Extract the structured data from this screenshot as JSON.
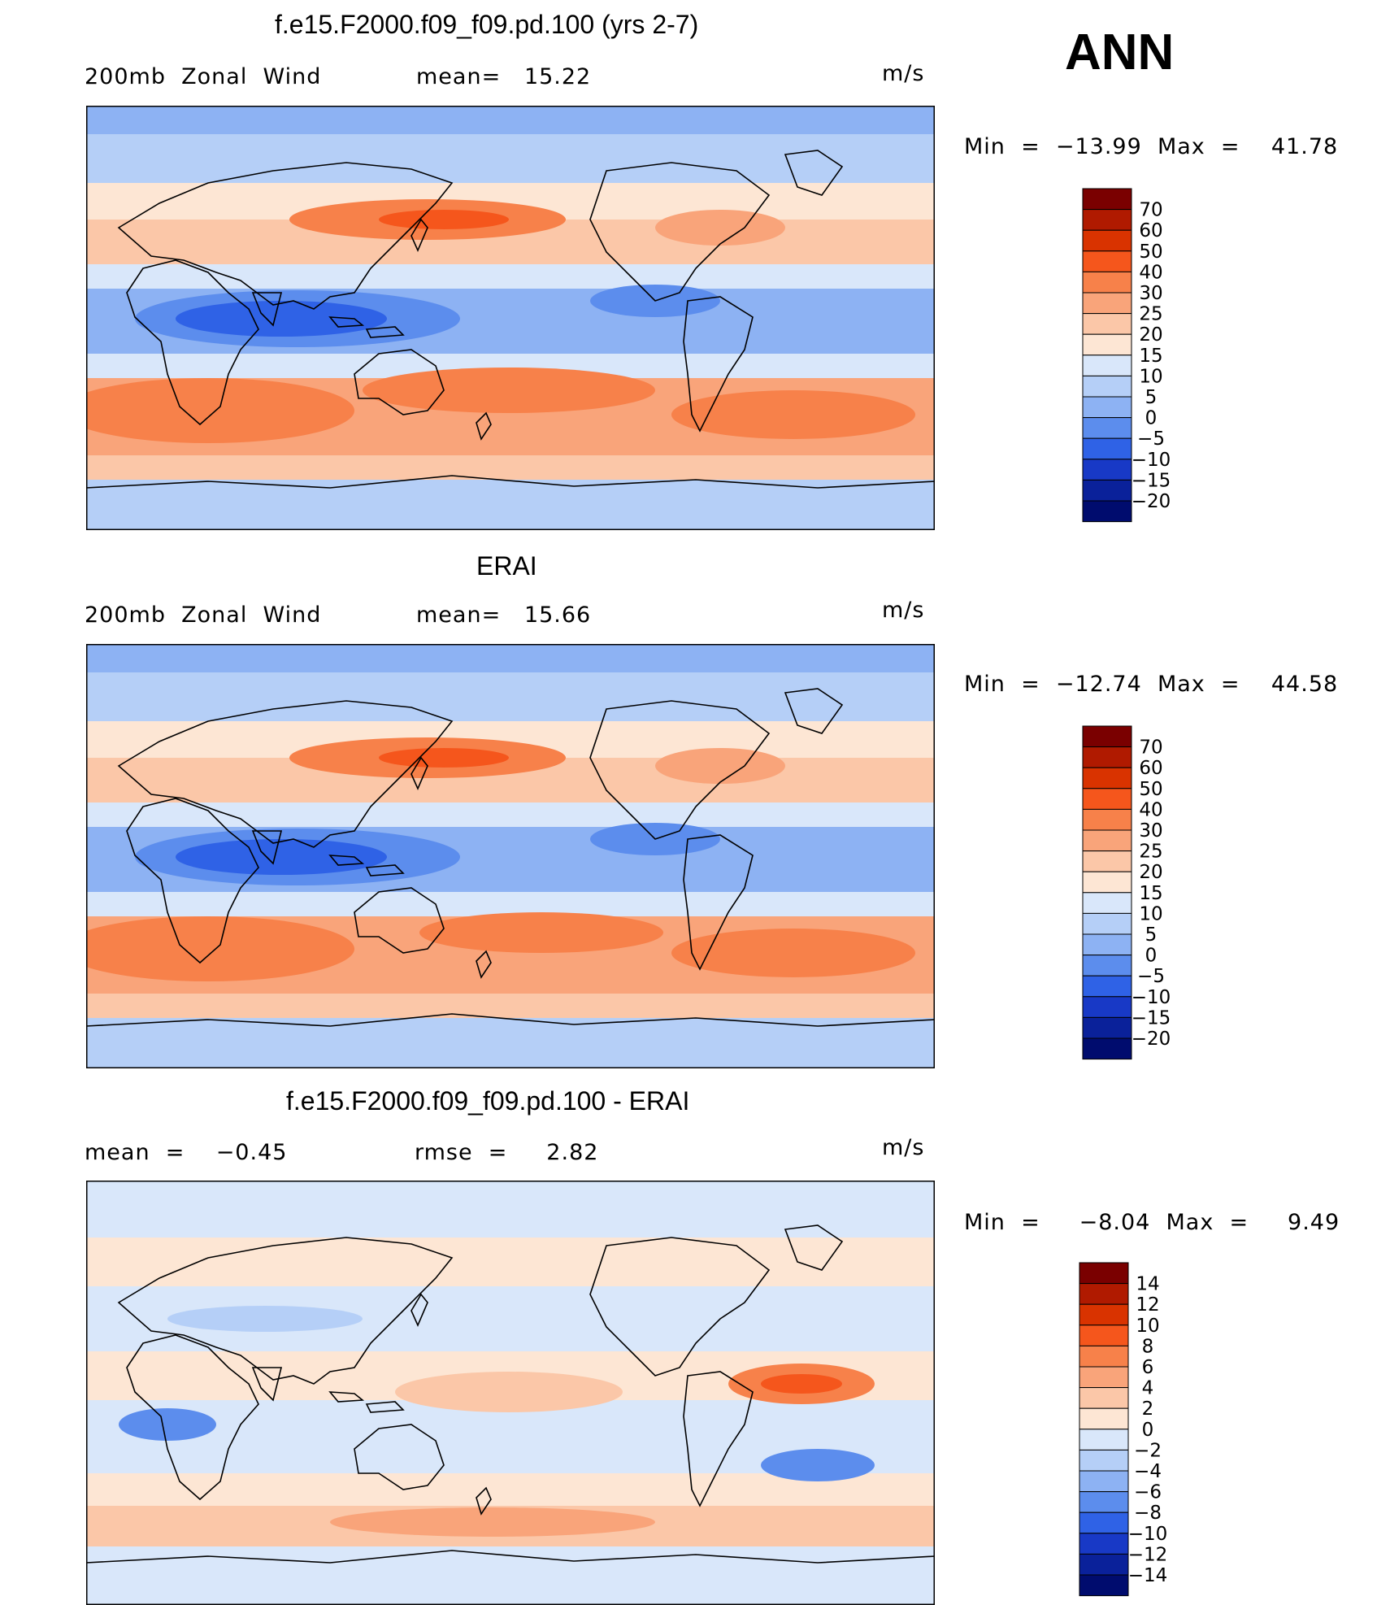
{
  "season": "ANN",
  "panels": [
    {
      "title": "f.e15.F2000.f09_f09.pd.100 (yrs 2-7)",
      "left_label": "200mb  Zonal  Wind",
      "stat1": "mean=   15.22",
      "stat2": "",
      "units": "m/s",
      "minmax": "Min  =  −13.99  Max  =    41.78",
      "type": "field"
    },
    {
      "title": "ERAI",
      "left_label": "200mb  Zonal  Wind",
      "stat1": "mean=   15.66",
      "stat2": "",
      "units": "m/s",
      "minmax": "Min  =  −12.74  Max  =    44.58",
      "type": "field"
    },
    {
      "title": "f.e15.F2000.f09_f09.pd.100 - ERAI",
      "left_label": "mean  =    −0.45",
      "stat1": "rmse  =     2.82",
      "stat2": "",
      "units": "m/s",
      "minmax": "Min  =     −8.04  Max  =     9.49",
      "type": "diff"
    }
  ],
  "colorbars": {
    "field": {
      "labels": [
        "70",
        "60",
        "50",
        "40",
        "30",
        "25",
        "20",
        "15",
        "10",
        "5",
        "0",
        "−5",
        "−10",
        "−15",
        "−20"
      ],
      "colors": [
        "#7a0000",
        "#b01a00",
        "#d93300",
        "#f5561c",
        "#f7814a",
        "#f9a47a",
        "#fbc7a8",
        "#fde6d4",
        "#d9e7fa",
        "#b5cff7",
        "#8db2f3",
        "#5c8ded",
        "#2f62e6",
        "#1839c6",
        "#0a219a",
        "#000c6e"
      ]
    },
    "diff": {
      "labels": [
        "14",
        "12",
        "10",
        "8",
        "6",
        "4",
        "2",
        "0",
        "−2",
        "−4",
        "−6",
        "−8",
        "−10",
        "−12",
        "−14"
      ],
      "colors": [
        "#7a0000",
        "#b01a00",
        "#d93300",
        "#f5561c",
        "#f7814a",
        "#f9a47a",
        "#fbc7a8",
        "#fde6d4",
        "#d9e7fa",
        "#b5cff7",
        "#8db2f3",
        "#5c8ded",
        "#2f62e6",
        "#1839c6",
        "#0a219a",
        "#000c6e"
      ]
    }
  }
}
